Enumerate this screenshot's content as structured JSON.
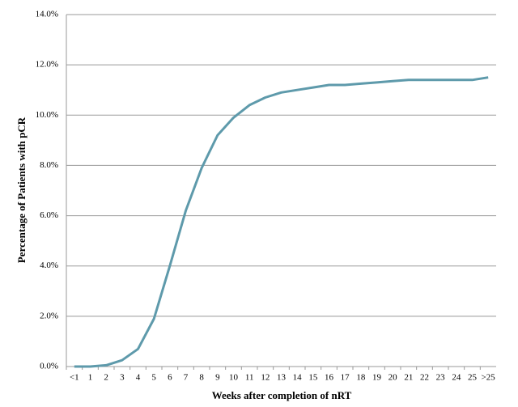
{
  "chart_data": {
    "type": "line",
    "x_label": "Weeks after completion of nRT",
    "y_label": "Percentage of Patients with pCR",
    "categories": [
      "<1",
      "1",
      "2",
      "3",
      "4",
      "5",
      "6",
      "7",
      "8",
      "9",
      "10",
      "11",
      "12",
      "13",
      "14",
      "15",
      "16",
      "17",
      "18",
      "19",
      "20",
      "21",
      "22",
      "23",
      "24",
      "25",
      ">25"
    ],
    "series": [
      {
        "color": "#5e9aab",
        "values": [
          0,
          0,
          0.05,
          0.25,
          0.7,
          1.9,
          4.0,
          6.2,
          7.9,
          9.2,
          9.9,
          10.4,
          10.7,
          10.9,
          11.0,
          11.1,
          11.2,
          11.2,
          11.25,
          11.3,
          11.35,
          11.4,
          11.4,
          11.4,
          11.4,
          11.4,
          11.5
        ]
      }
    ],
    "ylim": [
      0,
      14
    ],
    "yticks": [
      {
        "value": 0,
        "label": "0.0%"
      },
      {
        "value": 2,
        "label": "2.0%"
      },
      {
        "value": 4,
        "label": "4.0%"
      },
      {
        "value": 6,
        "label": "6.0%"
      },
      {
        "value": 8,
        "label": "8.0%"
      },
      {
        "value": 10,
        "label": "10.0%"
      },
      {
        "value": 12,
        "label": "12.0%"
      },
      {
        "value": 14,
        "label": "14.0%"
      }
    ],
    "grid": true
  }
}
